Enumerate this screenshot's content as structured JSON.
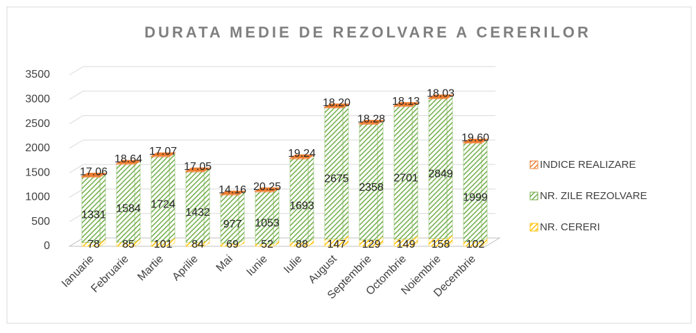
{
  "chart_data": {
    "type": "bar3d_stacked",
    "title": "DURATA MEDIE DE REZOLVARE A CERERILOR",
    "categories": [
      "Ianuarie",
      "Februarie",
      "Martie",
      "Aprilie",
      "Mai",
      "Iunie",
      "Iulie",
      "August",
      "Septembrie",
      "Octombrie",
      "Noiembrie",
      "Decembrie"
    ],
    "series": [
      {
        "name": "NR.  CERERI",
        "color": "#ffc000",
        "values": [
          78,
          85,
          101,
          84,
          69,
          52,
          88,
          147,
          129,
          149,
          158,
          102
        ]
      },
      {
        "name": "NR. ZILE REZOLVARE",
        "color": "#70ad47",
        "values": [
          1331,
          1584,
          1724,
          1432,
          977,
          1053,
          1693,
          2675,
          2358,
          2701,
          2849,
          1999
        ]
      },
      {
        "name": "INDICE REALIZARE",
        "color": "#ed7d31",
        "values": [
          17.06,
          18.64,
          17.07,
          17.05,
          14.16,
          20.25,
          19.24,
          18.2,
          18.28,
          18.13,
          18.03,
          19.6
        ],
        "value_labels": [
          "17.06",
          "18.64",
          "17.07",
          "17.05",
          "14.16",
          "20.25",
          "19.24",
          "18.20",
          "18.28",
          "18.13",
          "18.03",
          "19.60"
        ]
      }
    ],
    "ylim": [
      0,
      3500
    ],
    "yticks": [
      0,
      500,
      1000,
      1500,
      2000,
      2500,
      3000,
      3500
    ],
    "grid": true,
    "legend": "right"
  }
}
